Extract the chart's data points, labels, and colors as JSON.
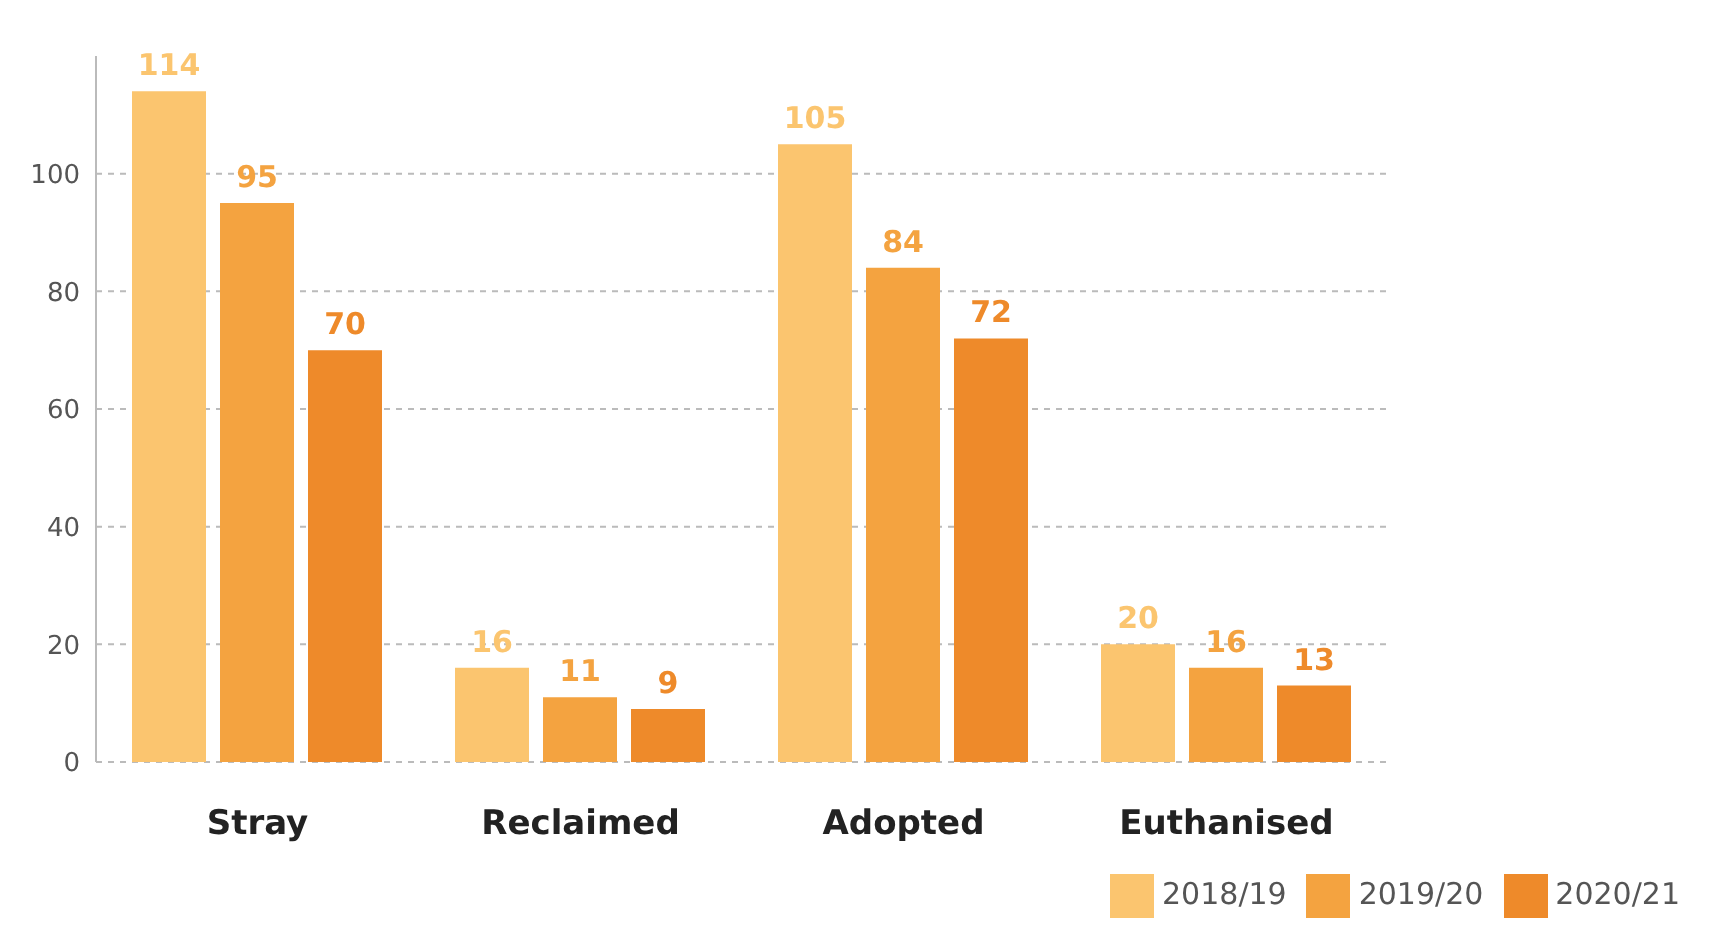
{
  "chart_data": {
    "type": "bar",
    "categories": [
      "Stray",
      "Reclaimed",
      "Adopted",
      "Euthanised"
    ],
    "series": [
      {
        "name": "2018/19",
        "color": "#fbc56f",
        "values": [
          114,
          16,
          105,
          20
        ]
      },
      {
        "name": "2019/20",
        "color": "#f4a340",
        "values": [
          95,
          11,
          84,
          16
        ]
      },
      {
        "name": "2020/21",
        "color": "#ee8a2a",
        "values": [
          70,
          9,
          72,
          13
        ]
      }
    ],
    "ylim": [
      0,
      120
    ],
    "yticks": [
      0,
      20,
      40,
      60,
      80,
      100
    ],
    "grid": "y",
    "legend": "bottom right",
    "data_labels": true
  }
}
